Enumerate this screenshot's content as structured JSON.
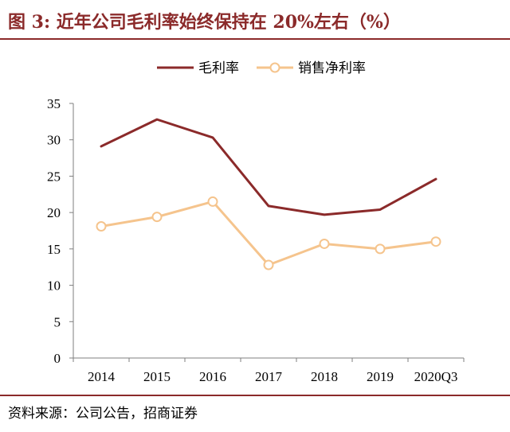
{
  "header": {
    "title": "图 3:  近年公司毛利率始终保持在 20%左右（%）"
  },
  "footer": {
    "source": "资料来源：公司公告，招商证券"
  },
  "chart_data": {
    "type": "line",
    "title": "图 3:  近年公司毛利率始终保持在 20%左右（%）",
    "xlabel": "",
    "ylabel": "",
    "categories": [
      "2014",
      "2015",
      "2016",
      "2017",
      "2018",
      "2019",
      "2020Q3"
    ],
    "yticks": [
      "0",
      "5",
      "10",
      "15",
      "20",
      "25",
      "30",
      "35"
    ],
    "ylim": [
      0,
      35
    ],
    "legend_position": "top-center",
    "grid": false,
    "series": [
      {
        "name": "毛利率",
        "color": "#8b2a2a",
        "marker": "none",
        "values": [
          29.1,
          32.8,
          30.3,
          20.9,
          19.7,
          20.4,
          24.6
        ]
      },
      {
        "name": "销售净利率",
        "color": "#f5c48d",
        "marker": "hollow-circle",
        "values": [
          18.1,
          19.4,
          21.5,
          12.8,
          15.7,
          15.0,
          16.0
        ]
      }
    ]
  }
}
